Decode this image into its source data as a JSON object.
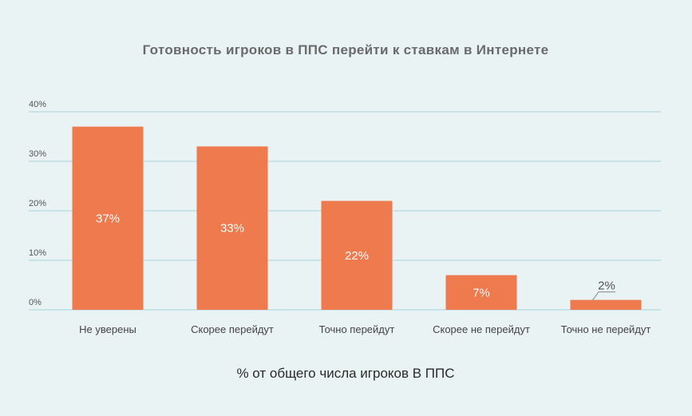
{
  "chart_data": {
    "type": "bar",
    "title": "Готовность игроков в ППС перейти к ставкам в Интернете",
    "xlabel": "% от общего числа игроков В ППС",
    "ylabel": "",
    "categories": [
      "Не уверены",
      "Скорее перейдут",
      "Точно перейдут",
      "Скорее не перейдут",
      "Точно не перейдут"
    ],
    "values": [
      37,
      33,
      22,
      7,
      2
    ],
    "data_labels": [
      "37%",
      "33%",
      "22%",
      "7%",
      "2%"
    ],
    "ylim": [
      0,
      40
    ],
    "yticks": [
      0,
      10,
      20,
      30,
      40
    ],
    "ytick_labels": [
      "0%",
      "10%",
      "20%",
      "30%",
      "40%"
    ],
    "grid": true,
    "colors": {
      "bar": "#ee7a4e",
      "grid": "#a9d4dc",
      "background": "#e9f3f3"
    }
  }
}
